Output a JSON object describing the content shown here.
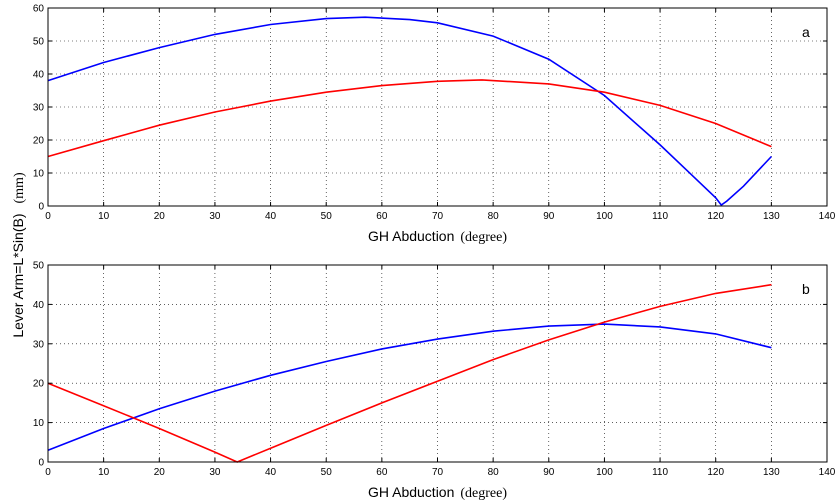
{
  "ylabel": {
    "main": "Lever Arm=L*Sin(B)",
    "unit": "(mm)"
  },
  "chart_data": [
    {
      "type": "line",
      "title": "",
      "panel_label": "a",
      "xlabel_main": "GH Abduction",
      "xlabel_unit": "(degree)",
      "xlim": [
        0,
        140
      ],
      "ylim": [
        0,
        60
      ],
      "xticks": [
        0,
        10,
        20,
        30,
        40,
        50,
        60,
        70,
        80,
        90,
        100,
        110,
        120,
        130,
        140
      ],
      "yticks": [
        0,
        10,
        20,
        30,
        40,
        50,
        60
      ],
      "grid": true,
      "series": [
        {
          "color": "#0000ff",
          "x": [
            0,
            10,
            20,
            30,
            40,
            50,
            57,
            65,
            70,
            80,
            90,
            100,
            110,
            115,
            120,
            121,
            122,
            125,
            130
          ],
          "y": [
            38,
            43.5,
            48,
            52,
            55,
            56.8,
            57.2,
            56.5,
            55.5,
            51.5,
            44.5,
            33.5,
            18.5,
            10.5,
            2.5,
            0.3,
            1.5,
            6,
            15
          ]
        },
        {
          "color": "#ff0000",
          "x": [
            0,
            10,
            20,
            30,
            40,
            50,
            60,
            70,
            78,
            90,
            100,
            110,
            120,
            130
          ],
          "y": [
            15,
            19.8,
            24.5,
            28.5,
            31.8,
            34.5,
            36.5,
            37.8,
            38.2,
            37,
            34.5,
            30.5,
            25,
            18
          ]
        }
      ]
    },
    {
      "type": "line",
      "title": "",
      "panel_label": "b",
      "xlabel_main": "GH Abduction",
      "xlabel_unit": "(degree)",
      "xlim": [
        0,
        140
      ],
      "ylim": [
        0,
        50
      ],
      "xticks": [
        0,
        10,
        20,
        30,
        40,
        50,
        60,
        70,
        80,
        90,
        100,
        110,
        120,
        130,
        140
      ],
      "yticks": [
        0,
        10,
        20,
        30,
        40,
        50
      ],
      "grid": true,
      "series": [
        {
          "color": "#0000ff",
          "x": [
            0,
            10,
            20,
            30,
            40,
            50,
            60,
            70,
            80,
            90,
            100,
            110,
            120,
            130
          ],
          "y": [
            3,
            8.5,
            13.5,
            18,
            22,
            25.5,
            28.7,
            31.2,
            33.2,
            34.5,
            35,
            34.3,
            32.5,
            29
          ]
        },
        {
          "color": "#ff0000",
          "x": [
            0,
            10,
            20,
            30,
            34,
            40,
            50,
            60,
            70,
            80,
            90,
            100,
            110,
            120,
            130
          ],
          "y": [
            20,
            14.3,
            8.5,
            2.5,
            0,
            3.5,
            9.3,
            15,
            20.5,
            26,
            31,
            35.5,
            39.5,
            42.8,
            45
          ]
        }
      ]
    }
  ]
}
